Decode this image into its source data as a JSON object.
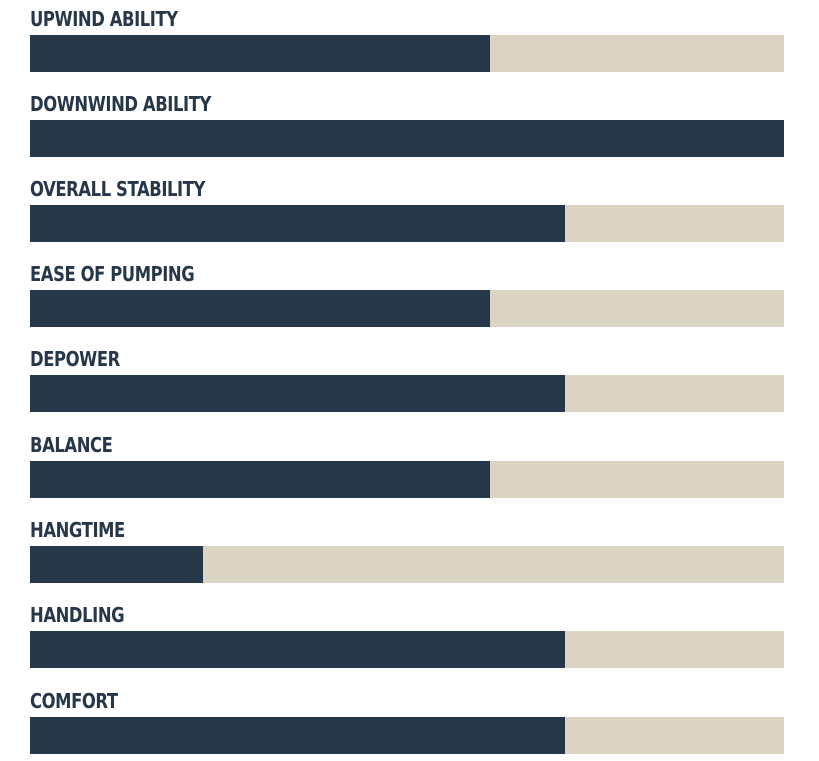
{
  "colors": {
    "fill": "#263749",
    "track": "#dcd4c3"
  },
  "chart_data": {
    "type": "bar",
    "orientation": "horizontal",
    "xlim": [
      0,
      1
    ],
    "categories": [
      "UPWIND ABILITY",
      "DOWNWIND ABILITY",
      "OVERALL STABILITY",
      "EASE OF PUMPING",
      "DEPOWER",
      "BALANCE",
      "HANGTIME",
      "HANDLING",
      "COMFORT"
    ],
    "values": [
      0.61,
      1.0,
      0.71,
      0.61,
      0.71,
      0.61,
      0.23,
      0.71,
      0.71
    ]
  }
}
